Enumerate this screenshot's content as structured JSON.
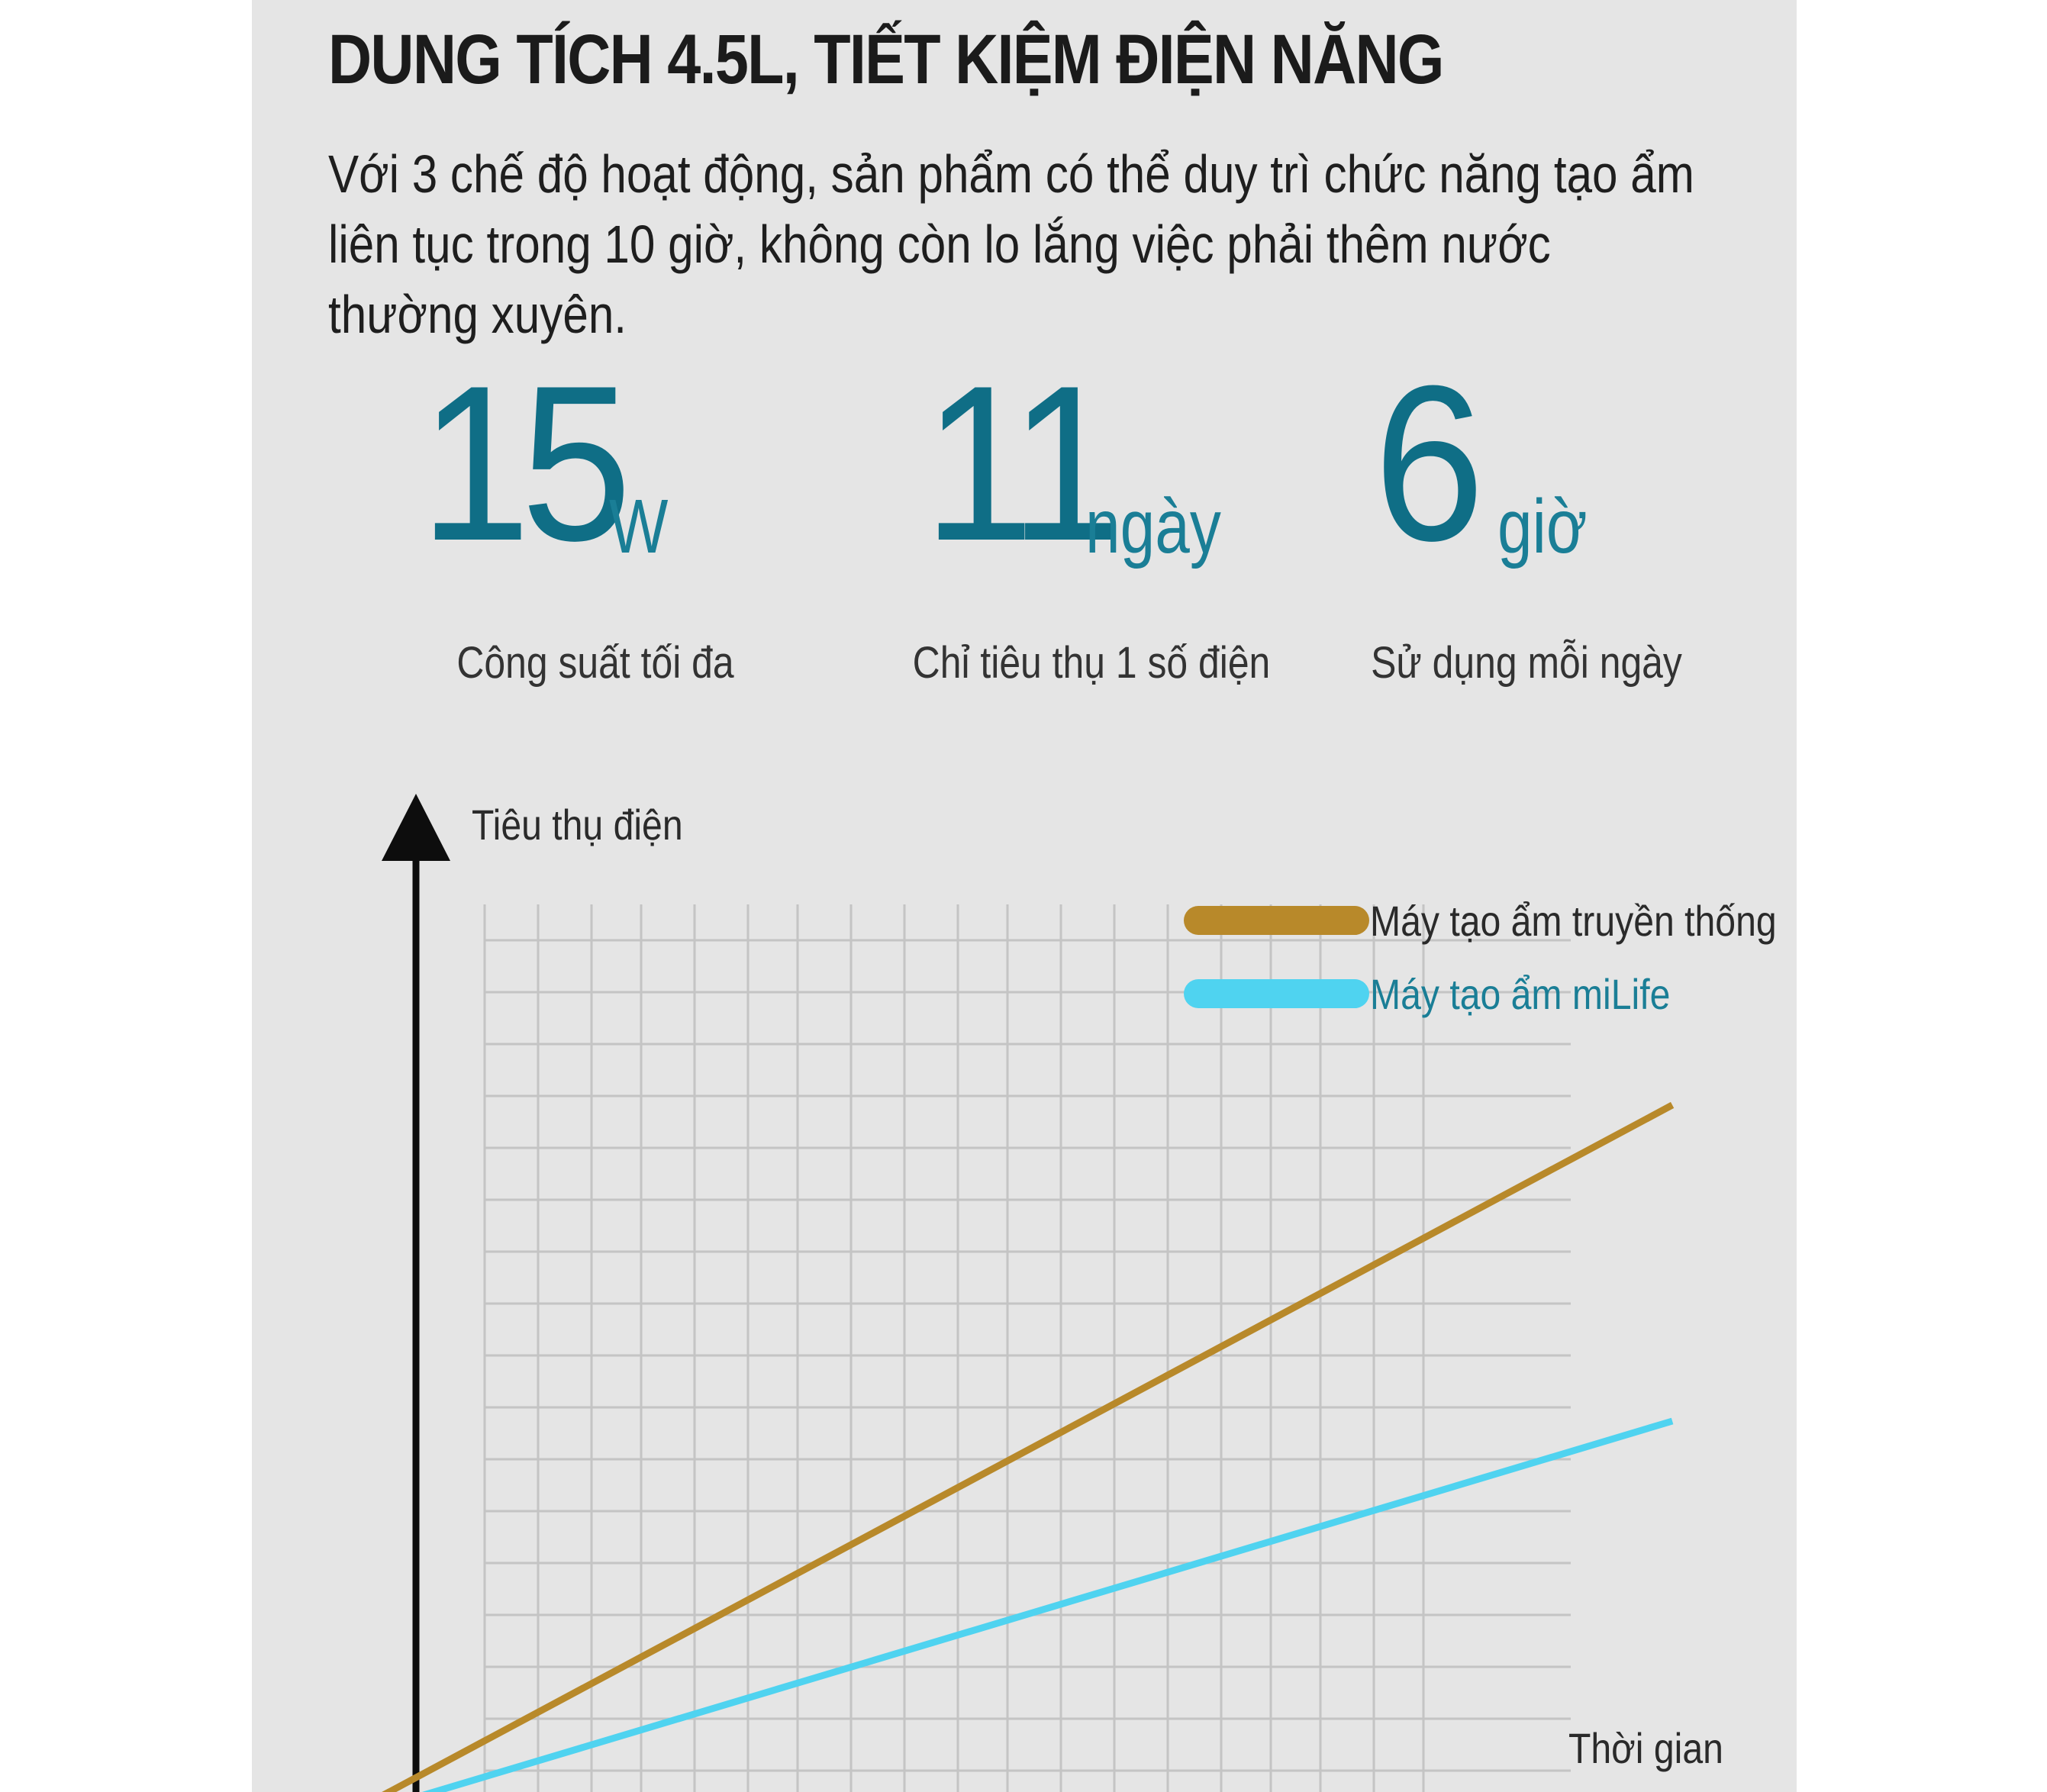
{
  "header": {
    "title": "DUNG TÍCH 4.5L, TIẾT KIỆM ĐIỆN NĂNG",
    "description": "Với 3 chế độ hoạt động, sản phẩm có thể duy trì chức năng tạo ẩm liên tục trong 10 giờ, không còn lo lắng việc phải thêm nước thường xuyên."
  },
  "stats": [
    {
      "value": "15",
      "unit": "W",
      "label": "Công suất tối đa"
    },
    {
      "value": "11",
      "unit": "ngày",
      "label": "Chỉ tiêu thụ 1 số điện"
    },
    {
      "value": "6",
      "unit": "giờ",
      "label": "Sử dụng mỗi ngày"
    }
  ],
  "colors": {
    "accent": "#0f6e86",
    "traditional": "#b8892a",
    "milife": "#4fd3f0"
  },
  "chart_data": {
    "type": "line",
    "ylabel": "Tiêu thụ điện",
    "xlabel": "Thời gian",
    "grid": true,
    "legend_placement": "top-right",
    "xlim": [
      0,
      12
    ],
    "ylim": [
      0,
      12
    ],
    "series": [
      {
        "name": "Máy tạo ẩm truyền thống",
        "x": [
          0,
          11.15
        ],
        "y": [
          0,
          8.4
        ]
      },
      {
        "name": "Máy tạo ẩm miLife",
        "x": [
          0,
          11.15
        ],
        "y": [
          0,
          4.7
        ]
      }
    ]
  }
}
